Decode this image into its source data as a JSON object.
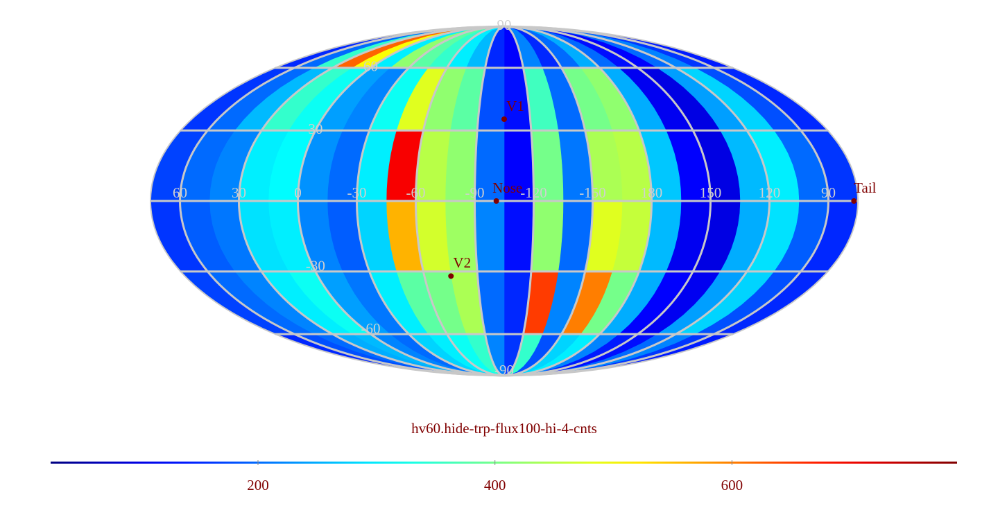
{
  "chart_data": {
    "type": "skymap",
    "title": "hv60.hide-trp-flux100-hi-4-cnts",
    "colormap": "jet",
    "lon_bins": [
      -180,
      -165,
      -150,
      -135,
      -120,
      -105,
      -90,
      -75,
      -60,
      -45,
      -30,
      -15,
      0,
      15,
      30,
      45,
      60,
      75,
      90,
      105,
      120,
      135,
      150,
      165,
      180
    ],
    "lat_bins": [
      90,
      60,
      30,
      0,
      -30,
      -60,
      -90
    ],
    "values": [
      [
        250,
        200,
        150,
        220,
        120,
        150,
        260,
        300,
        350,
        380,
        420,
        300,
        500,
        620,
        350,
        200,
        150,
        140,
        160,
        220,
        200,
        120,
        130,
        200
      ],
      [
        420,
        400,
        200,
        360,
        130,
        180,
        380,
        420,
        480,
        320,
        220,
        240,
        320,
        350,
        260,
        200,
        160,
        150,
        180,
        280,
        240,
        100,
        110,
        250
      ],
      [
        450,
        440,
        210,
        400,
        120,
        200,
        420,
        450,
        700,
        300,
        200,
        230,
        310,
        300,
        220,
        200,
        170,
        160,
        200,
        300,
        260,
        100,
        120,
        270
      ],
      [
        460,
        480,
        200,
        420,
        130,
        220,
        430,
        470,
        560,
        280,
        190,
        220,
        300,
        290,
        210,
        190,
        160,
        150,
        190,
        290,
        250,
        100,
        110,
        260
      ],
      [
        400,
        600,
        220,
        650,
        150,
        200,
        440,
        400,
        380,
        300,
        210,
        240,
        320,
        300,
        220,
        200,
        170,
        150,
        180,
        280,
        240,
        110,
        120,
        250
      ],
      [
        300,
        280,
        180,
        350,
        160,
        220,
        350,
        320,
        300,
        280,
        200,
        220,
        260,
        250,
        200,
        180,
        150,
        140,
        160,
        220,
        200,
        130,
        140,
        220
      ]
    ],
    "lon_ticks": [
      60,
      30,
      0,
      -30,
      -60,
      -90,
      -120,
      -150,
      180,
      150,
      120,
      90
    ],
    "lat_ticks": [
      90,
      60,
      30,
      -30,
      -60,
      -90
    ],
    "markers": [
      {
        "name": "V1",
        "lon": -105,
        "lat": 35
      },
      {
        "name": "Nose",
        "lon": -101,
        "lat": 0
      },
      {
        "name": "V2",
        "lon": -75,
        "lat": -32
      },
      {
        "name": "Tail",
        "lon": 77,
        "lat": 0
      }
    ],
    "clim": [
      25,
      790
    ],
    "cticks": [
      200,
      400,
      600
    ],
    "grid": true
  }
}
